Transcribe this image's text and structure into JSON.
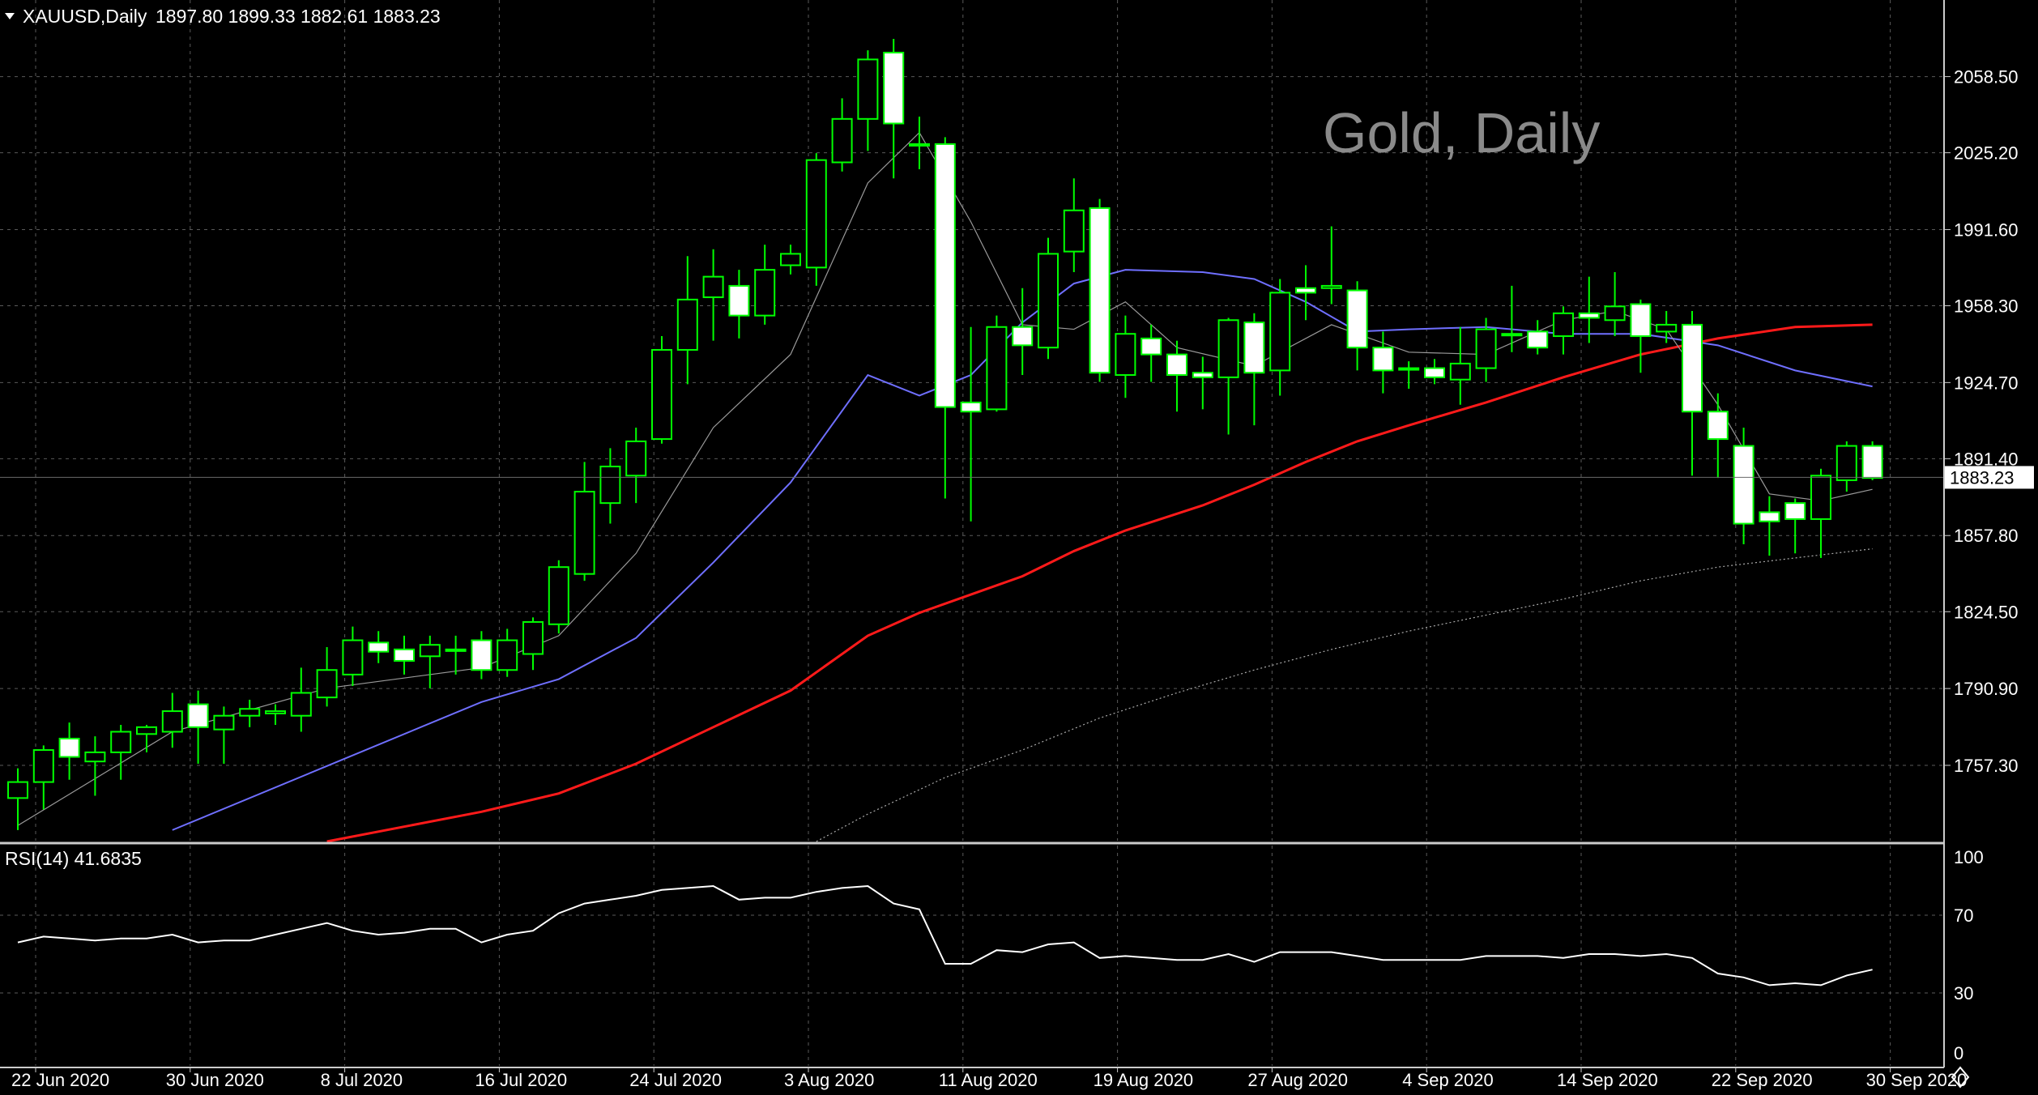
{
  "header": {
    "symbol": "XAUUSD,Daily",
    "ohlc": "1897.80 1899.33 1882.61 1883.23",
    "watermark": "Gold, Daily"
  },
  "colors": {
    "background": "#000000",
    "grid": "#5a5a5a",
    "bull": "#00ff00",
    "bear_body": "#ffffff",
    "ma_fast": "#9a9a9a",
    "ma_medium": "#6f6fff",
    "ma_slow": "#ff1a1a",
    "ma_long": "#aaaaaa",
    "rsi": "#ffffff",
    "watermark": "#8a8a8a",
    "price_line": "#6a6a6a"
  },
  "chart_data": [
    {
      "type": "candlestick",
      "name": "XAUUSD,Daily",
      "ylim": [
        1724.0,
        2092.0
      ],
      "y_ticks": [
        {
          "value": 2058.5,
          "label": "2058.50"
        },
        {
          "value": 2025.2,
          "label": "2025.20"
        },
        {
          "value": 1991.6,
          "label": "1991.60"
        },
        {
          "value": 1958.3,
          "label": "1958.30"
        },
        {
          "value": 1924.7,
          "label": "1924.70"
        },
        {
          "value": 1891.4,
          "label": "1891.40"
        },
        {
          "value": 1857.8,
          "label": "1857.80"
        },
        {
          "value": 1824.5,
          "label": "1824.50"
        },
        {
          "value": 1790.9,
          "label": "1790.90"
        },
        {
          "value": 1757.3,
          "label": "1757.30"
        }
      ],
      "current_price": {
        "value": 1883.23,
        "label": "1883.23"
      },
      "x_labels": [
        {
          "bar": 0,
          "label": "22 Jun 2020"
        },
        {
          "bar": 6,
          "label": "30 Jun 2020"
        },
        {
          "bar": 12,
          "label": "8 Jul 2020"
        },
        {
          "bar": 18,
          "label": "16 Jul 2020"
        },
        {
          "bar": 24,
          "label": "24 Jul 2020"
        },
        {
          "bar": 30,
          "label": "3 Aug 2020"
        },
        {
          "bar": 36,
          "label": "11 Aug 2020"
        },
        {
          "bar": 42,
          "label": "19 Aug 2020"
        },
        {
          "bar": 48,
          "label": "27 Aug 2020"
        },
        {
          "bar": 54,
          "label": "4 Sep 2020"
        },
        {
          "bar": 60,
          "label": "14 Sep 2020"
        },
        {
          "bar": 66,
          "label": "22 Sep 2020"
        },
        {
          "bar": 72,
          "label": "30 Sep 2020"
        }
      ],
      "candles": [
        {
          "o": 1743,
          "h": 1756,
          "l": 1729,
          "c": 1750
        },
        {
          "o": 1750,
          "h": 1766,
          "l": 1738,
          "c": 1764
        },
        {
          "o": 1769,
          "h": 1776,
          "l": 1751,
          "c": 1761
        },
        {
          "o": 1759,
          "h": 1770,
          "l": 1744,
          "c": 1763
        },
        {
          "o": 1763,
          "h": 1775,
          "l": 1751,
          "c": 1772
        },
        {
          "o": 1771,
          "h": 1775,
          "l": 1763,
          "c": 1774
        },
        {
          "o": 1772,
          "h": 1789,
          "l": 1765,
          "c": 1781
        },
        {
          "o": 1784,
          "h": 1790,
          "l": 1758,
          "c": 1774
        },
        {
          "o": 1773,
          "h": 1783,
          "l": 1758,
          "c": 1779
        },
        {
          "o": 1779,
          "h": 1786,
          "l": 1774,
          "c": 1782
        },
        {
          "o": 1780,
          "h": 1784,
          "l": 1775,
          "c": 1781
        },
        {
          "o": 1779,
          "h": 1800,
          "l": 1772,
          "c": 1789
        },
        {
          "o": 1787,
          "h": 1809,
          "l": 1783,
          "c": 1799
        },
        {
          "o": 1797,
          "h": 1818,
          "l": 1792,
          "c": 1812
        },
        {
          "o": 1811,
          "h": 1816,
          "l": 1802,
          "c": 1807
        },
        {
          "o": 1808,
          "h": 1814,
          "l": 1797,
          "c": 1803
        },
        {
          "o": 1805,
          "h": 1814,
          "l": 1791,
          "c": 1810
        },
        {
          "o": 1808,
          "h": 1814,
          "l": 1797,
          "c": 1808
        },
        {
          "o": 1812,
          "h": 1816,
          "l": 1795,
          "c": 1799
        },
        {
          "o": 1799,
          "h": 1817,
          "l": 1796,
          "c": 1812
        },
        {
          "o": 1806,
          "h": 1822,
          "l": 1799,
          "c": 1820
        },
        {
          "o": 1819,
          "h": 1847,
          "l": 1815,
          "c": 1844
        },
        {
          "o": 1841,
          "h": 1890,
          "l": 1838,
          "c": 1877
        },
        {
          "o": 1872,
          "h": 1896,
          "l": 1863,
          "c": 1888
        },
        {
          "o": 1884,
          "h": 1905,
          "l": 1872,
          "c": 1899
        },
        {
          "o": 1900,
          "h": 1945,
          "l": 1898,
          "c": 1939
        },
        {
          "o": 1939,
          "h": 1980,
          "l": 1924,
          "c": 1961
        },
        {
          "o": 1962,
          "h": 1983,
          "l": 1943,
          "c": 1971
        },
        {
          "o": 1967,
          "h": 1974,
          "l": 1944,
          "c": 1954
        },
        {
          "o": 1954,
          "h": 1985,
          "l": 1950,
          "c": 1974
        },
        {
          "o": 1976,
          "h": 1985,
          "l": 1972,
          "c": 1981
        },
        {
          "o": 1975,
          "h": 2025,
          "l": 1967,
          "c": 2022
        },
        {
          "o": 2021,
          "h": 2049,
          "l": 2017,
          "c": 2040
        },
        {
          "o": 2040,
          "h": 2070,
          "l": 2026,
          "c": 2066
        },
        {
          "o": 2069,
          "h": 2075,
          "l": 2014,
          "c": 2038
        },
        {
          "o": 2029,
          "h": 2041,
          "l": 2018,
          "c": 2029
        },
        {
          "o": 2029,
          "h": 2032,
          "l": 1874,
          "c": 1914
        },
        {
          "o": 1916,
          "h": 1949,
          "l": 1864,
          "c": 1912
        },
        {
          "o": 1913,
          "h": 1954,
          "l": 1912,
          "c": 1949
        },
        {
          "o": 1949,
          "h": 1966,
          "l": 1928,
          "c": 1941
        },
        {
          "o": 1940,
          "h": 1988,
          "l": 1935,
          "c": 1981
        },
        {
          "o": 1982,
          "h": 2014,
          "l": 1973,
          "c": 2000
        },
        {
          "o": 2001,
          "h": 2005,
          "l": 1925,
          "c": 1929
        },
        {
          "o": 1928,
          "h": 1954,
          "l": 1918,
          "c": 1946
        },
        {
          "o": 1944,
          "h": 1950,
          "l": 1925,
          "c": 1937
        },
        {
          "o": 1937,
          "h": 1943,
          "l": 1912,
          "c": 1928
        },
        {
          "o": 1929,
          "h": 1936,
          "l": 1913,
          "c": 1927
        },
        {
          "o": 1927,
          "h": 1953,
          "l": 1902,
          "c": 1952
        },
        {
          "o": 1951,
          "h": 1955,
          "l": 1906,
          "c": 1929
        },
        {
          "o": 1930,
          "h": 1970,
          "l": 1919,
          "c": 1964
        },
        {
          "o": 1966,
          "h": 1976,
          "l": 1952,
          "c": 1964
        },
        {
          "o": 1966,
          "h": 1993,
          "l": 1959,
          "c": 1967
        },
        {
          "o": 1965,
          "h": 1969,
          "l": 1930,
          "c": 1940
        },
        {
          "o": 1940,
          "h": 1947,
          "l": 1920,
          "c": 1930
        },
        {
          "o": 1931,
          "h": 1934,
          "l": 1922,
          "c": 1931
        },
        {
          "o": 1931,
          "h": 1935,
          "l": 1924,
          "c": 1927
        },
        {
          "o": 1926,
          "h": 1949,
          "l": 1915,
          "c": 1933
        },
        {
          "o": 1931,
          "h": 1953,
          "l": 1925,
          "c": 1948
        },
        {
          "o": 1946,
          "h": 1967,
          "l": 1938,
          "c": 1946
        },
        {
          "o": 1947,
          "h": 1952,
          "l": 1937,
          "c": 1940
        },
        {
          "o": 1945,
          "h": 1958,
          "l": 1937,
          "c": 1955
        },
        {
          "o": 1955,
          "h": 1971,
          "l": 1942,
          "c": 1953
        },
        {
          "o": 1952,
          "h": 1973,
          "l": 1945,
          "c": 1958
        },
        {
          "o": 1959,
          "h": 1961,
          "l": 1929,
          "c": 1945
        },
        {
          "o": 1947,
          "h": 1956,
          "l": 1942,
          "c": 1950
        },
        {
          "o": 1950,
          "h": 1956,
          "l": 1884,
          "c": 1912
        },
        {
          "o": 1912,
          "h": 1920,
          "l": 1883,
          "c": 1900
        },
        {
          "o": 1897,
          "h": 1905,
          "l": 1854,
          "c": 1863
        },
        {
          "o": 1868,
          "h": 1875,
          "l": 1849,
          "c": 1864
        },
        {
          "o": 1872,
          "h": 1874,
          "l": 1850,
          "c": 1865
        },
        {
          "o": 1865,
          "h": 1887,
          "l": 1848,
          "c": 1884
        },
        {
          "o": 1882,
          "h": 1899,
          "l": 1877,
          "c": 1897
        },
        {
          "o": 1897,
          "h": 1899,
          "l": 1882,
          "c": 1883
        }
      ],
      "ma_fast": [
        [
          0,
          1731
        ],
        [
          6,
          1772
        ],
        [
          12,
          1791
        ],
        [
          18,
          1800
        ],
        [
          21,
          1814
        ],
        [
          24,
          1850
        ],
        [
          27,
          1905
        ],
        [
          30,
          1937
        ],
        [
          33,
          2012
        ],
        [
          35,
          2034
        ],
        [
          37,
          1995
        ],
        [
          39,
          1950
        ],
        [
          41,
          1948
        ],
        [
          43,
          1960
        ],
        [
          45,
          1940
        ],
        [
          48,
          1932
        ],
        [
          51,
          1950
        ],
        [
          54,
          1938
        ],
        [
          57,
          1937
        ],
        [
          60,
          1952
        ],
        [
          62,
          1956
        ],
        [
          64,
          1948
        ],
        [
          66,
          1915
        ],
        [
          68,
          1876
        ],
        [
          70,
          1873
        ],
        [
          72,
          1878
        ]
      ],
      "ma_medium": [
        [
          6,
          1729
        ],
        [
          12,
          1757
        ],
        [
          18,
          1785
        ],
        [
          21,
          1795
        ],
        [
          24,
          1813
        ],
        [
          27,
          1846
        ],
        [
          30,
          1881
        ],
        [
          33,
          1928
        ],
        [
          35,
          1919
        ],
        [
          37,
          1928
        ],
        [
          39,
          1951
        ],
        [
          41,
          1968
        ],
        [
          43,
          1974
        ],
        [
          46,
          1973
        ],
        [
          48,
          1970
        ],
        [
          50,
          1960
        ],
        [
          52,
          1947
        ],
        [
          54,
          1948
        ],
        [
          57,
          1949
        ],
        [
          60,
          1946
        ],
        [
          63,
          1946
        ],
        [
          66,
          1941
        ],
        [
          69,
          1930
        ],
        [
          72,
          1923
        ]
      ],
      "ma_slow": [
        [
          12,
          1724
        ],
        [
          18,
          1737
        ],
        [
          21,
          1745
        ],
        [
          24,
          1758
        ],
        [
          27,
          1774
        ],
        [
          30,
          1790
        ],
        [
          33,
          1814
        ],
        [
          35,
          1824
        ],
        [
          37,
          1832
        ],
        [
          39,
          1840
        ],
        [
          41,
          1851
        ],
        [
          43,
          1860
        ],
        [
          46,
          1871
        ],
        [
          48,
          1880
        ],
        [
          50,
          1890
        ],
        [
          52,
          1899
        ],
        [
          54,
          1906
        ],
        [
          57,
          1916
        ],
        [
          60,
          1927
        ],
        [
          63,
          1937
        ],
        [
          66,
          1944
        ],
        [
          69,
          1949
        ],
        [
          72,
          1950
        ]
      ],
      "ma_long": [
        [
          31,
          1724
        ],
        [
          33,
          1736
        ],
        [
          36,
          1752
        ],
        [
          39,
          1764
        ],
        [
          42,
          1778
        ],
        [
          45,
          1789
        ],
        [
          48,
          1799
        ],
        [
          51,
          1808
        ],
        [
          54,
          1816
        ],
        [
          57,
          1823
        ],
        [
          60,
          1830
        ],
        [
          63,
          1838
        ],
        [
          66,
          1844
        ],
        [
          69,
          1848
        ],
        [
          72,
          1852
        ]
      ]
    },
    {
      "type": "line",
      "name": "RSI(14) 41.6835",
      "ylim": [
        0,
        100
      ],
      "y_ticks": [
        {
          "value": 100,
          "label": "100"
        },
        {
          "value": 70,
          "label": "70"
        },
        {
          "value": 30,
          "label": "30"
        },
        {
          "value": 0,
          "label": "0"
        }
      ],
      "levels": [
        70,
        30
      ],
      "values": [
        56,
        59,
        58,
        57,
        58,
        58,
        60,
        56,
        57,
        57,
        60,
        63,
        66,
        62,
        60,
        61,
        63,
        63,
        56,
        60,
        62,
        71,
        76,
        78,
        80,
        83,
        84,
        85,
        78,
        79,
        79,
        82,
        84,
        85,
        76,
        73,
        45,
        45,
        52,
        51,
        55,
        56,
        48,
        49,
        48,
        47,
        47,
        50,
        46,
        51,
        51,
        51,
        49,
        47,
        47,
        47,
        47,
        49,
        49,
        49,
        48,
        50,
        50,
        49,
        50,
        48,
        40,
        38,
        34,
        35,
        34,
        39,
        42
      ]
    }
  ]
}
